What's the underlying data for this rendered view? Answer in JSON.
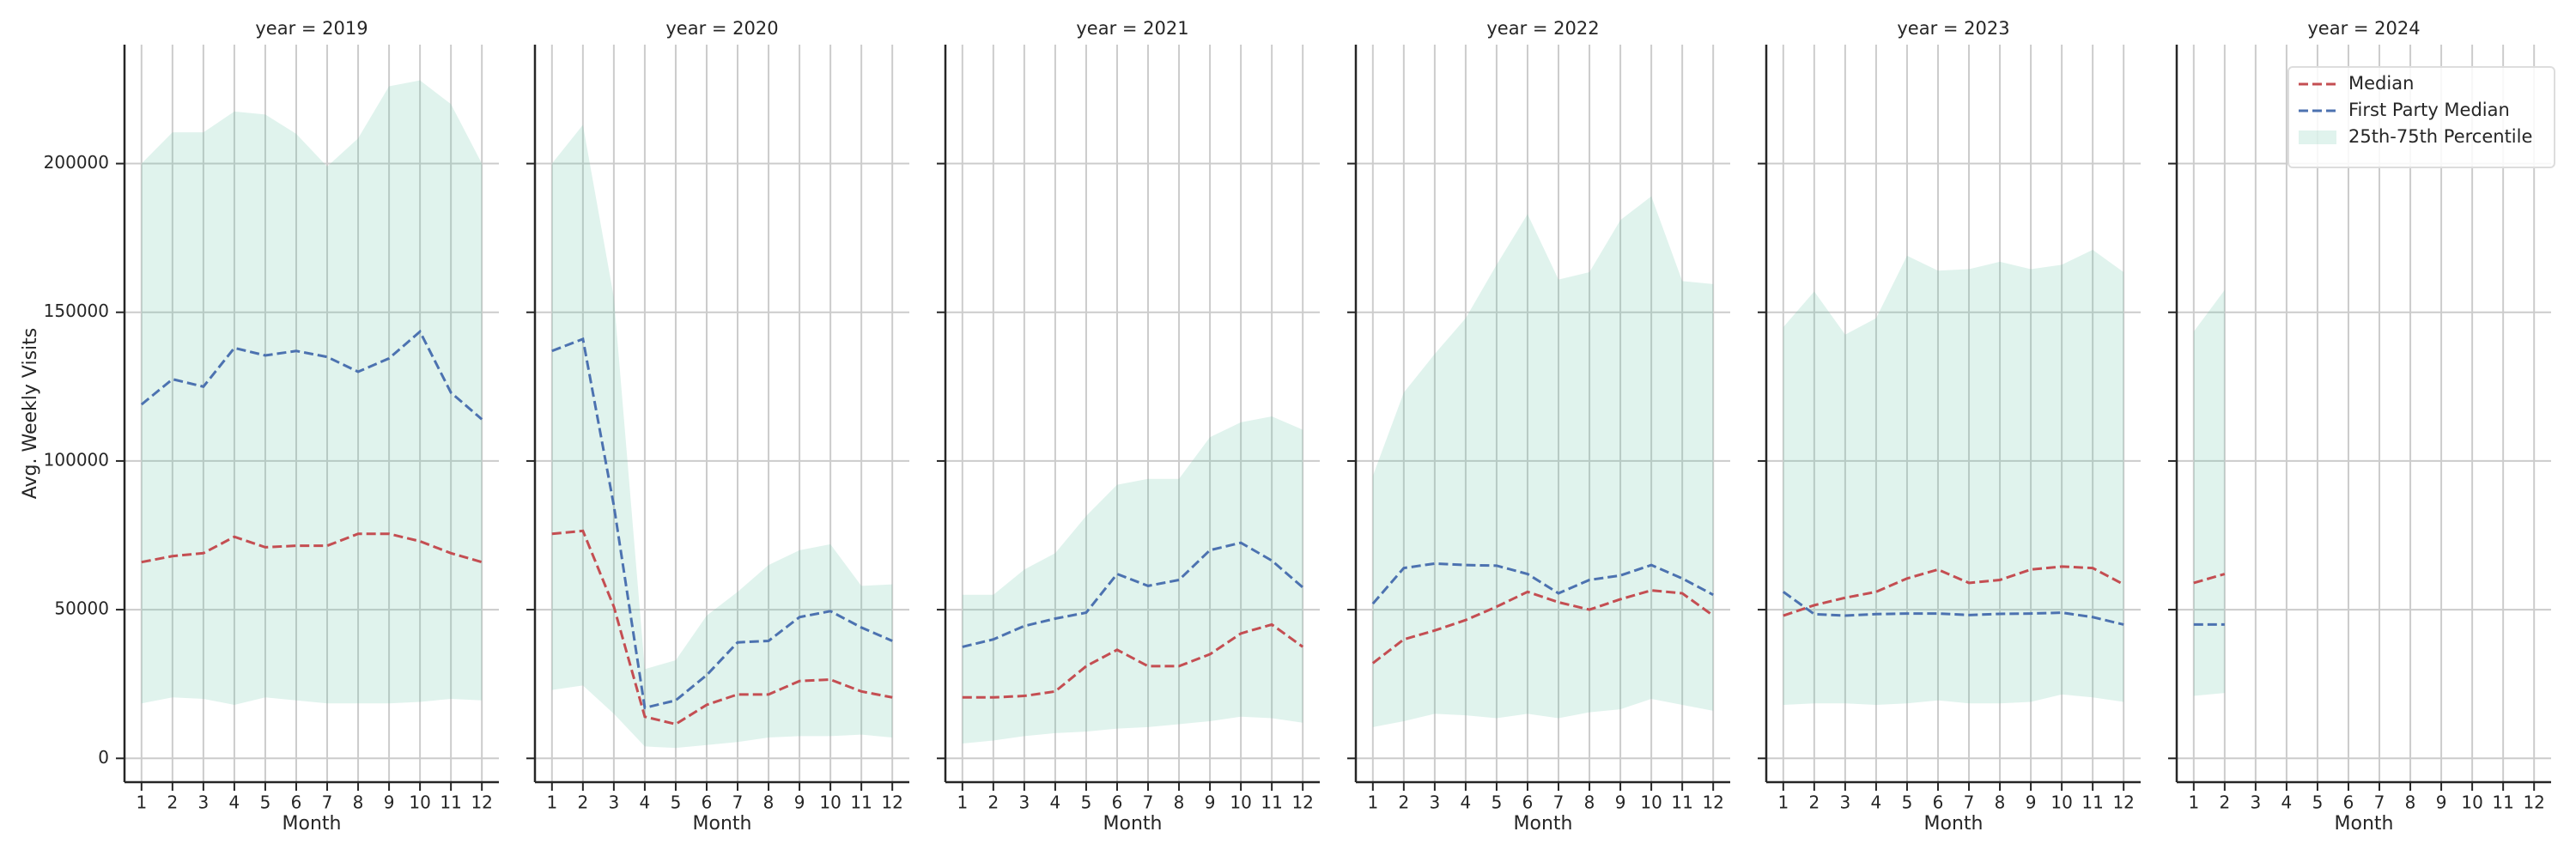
{
  "chart_data": [
    {
      "type": "line",
      "title": "year = 2019",
      "xlabel": "Month",
      "ylabel": "Avg. Weekly Visits",
      "x": [
        1,
        2,
        3,
        4,
        5,
        6,
        7,
        8,
        9,
        10,
        11,
        12
      ],
      "xlim": [
        0.45,
        12.55
      ],
      "xticks": [
        1,
        2,
        3,
        4,
        5,
        6,
        7,
        8,
        9,
        10,
        11,
        12
      ],
      "ylim": [
        -8000,
        240000
      ],
      "yticks": [
        0,
        50000,
        100000,
        150000,
        200000
      ],
      "grid": true,
      "series": [
        {
          "name": "Median",
          "color": "#c44e52",
          "linestyle": "dashed",
          "values": [
            66000,
            68000,
            69000,
            74500,
            71000,
            71500,
            71500,
            75500,
            75500,
            73000,
            69000,
            66000
          ]
        },
        {
          "name": "First Party Median",
          "color": "#4c72b0",
          "linestyle": "dashed",
          "values": [
            119000,
            127500,
            125000,
            138000,
            135500,
            137000,
            135000,
            130000,
            134500,
            143500,
            123000,
            114000
          ]
        }
      ],
      "band": {
        "name": "25th-75th Percentile",
        "color": "#66c2a5",
        "lower": [
          18500,
          20500,
          20000,
          18000,
          20500,
          19500,
          18500,
          18500,
          18500,
          19000,
          20000,
          19500
        ],
        "upper": [
          200000,
          210500,
          210500,
          217500,
          216500,
          210000,
          199000,
          208500,
          226000,
          228000,
          220000,
          200000
        ]
      }
    },
    {
      "type": "line",
      "title": "year = 2020",
      "xlabel": "Month",
      "x": [
        1,
        2,
        3,
        4,
        5,
        6,
        7,
        8,
        9,
        10,
        11,
        12
      ],
      "xlim": [
        0.45,
        12.55
      ],
      "xticks": [
        1,
        2,
        3,
        4,
        5,
        6,
        7,
        8,
        9,
        10,
        11,
        12
      ],
      "ylim": [
        -8000,
        240000
      ],
      "yticks": [
        0,
        50000,
        100000,
        150000,
        200000
      ],
      "grid": true,
      "series": [
        {
          "name": "Median",
          "color": "#c44e52",
          "linestyle": "dashed",
          "values": [
            75500,
            76500,
            51000,
            14000,
            11500,
            18000,
            21500,
            21500,
            26000,
            26500,
            22500,
            20500
          ]
        },
        {
          "name": "First Party Median",
          "color": "#4c72b0",
          "linestyle": "dashed",
          "values": [
            137000,
            141000,
            85000,
            17000,
            19500,
            28000,
            39000,
            39500,
            47500,
            49500,
            44000,
            39500
          ]
        }
      ],
      "band": {
        "name": "25th-75th Percentile",
        "color": "#66c2a5",
        "lower": [
          23000,
          24500,
          15000,
          4000,
          3500,
          4500,
          5500,
          7000,
          7500,
          7500,
          8000,
          7000
        ],
        "upper": [
          200000,
          213000,
          155000,
          30000,
          33000,
          48000,
          56000,
          65000,
          70000,
          72000,
          58000,
          58500
        ]
      }
    },
    {
      "type": "line",
      "title": "year = 2021",
      "xlabel": "Month",
      "x": [
        1,
        2,
        3,
        4,
        5,
        6,
        7,
        8,
        9,
        10,
        11,
        12
      ],
      "xlim": [
        0.45,
        12.55
      ],
      "xticks": [
        1,
        2,
        3,
        4,
        5,
        6,
        7,
        8,
        9,
        10,
        11,
        12
      ],
      "ylim": [
        -8000,
        240000
      ],
      "yticks": [
        0,
        50000,
        100000,
        150000,
        200000
      ],
      "grid": true,
      "series": [
        {
          "name": "Median",
          "color": "#c44e52",
          "linestyle": "dashed",
          "values": [
            20500,
            20500,
            21000,
            22500,
            31000,
            36500,
            31000,
            31000,
            35000,
            42000,
            45000,
            37500
          ]
        },
        {
          "name": "First Party Median",
          "color": "#4c72b0",
          "linestyle": "dashed",
          "values": [
            37500,
            40000,
            44500,
            47000,
            49000,
            62000,
            58000,
            60000,
            70000,
            72500,
            66500,
            57500
          ]
        }
      ],
      "band": {
        "name": "25th-75th Percentile",
        "color": "#66c2a5",
        "lower": [
          5000,
          6000,
          7500,
          8500,
          9000,
          10000,
          10500,
          11500,
          12500,
          14000,
          13500,
          12000
        ],
        "upper": [
          55000,
          55000,
          63500,
          69000,
          81500,
          92000,
          94000,
          94000,
          108000,
          113000,
          115000,
          110500
        ]
      }
    },
    {
      "type": "line",
      "title": "year = 2022",
      "xlabel": "Month",
      "x": [
        1,
        2,
        3,
        4,
        5,
        6,
        7,
        8,
        9,
        10,
        11,
        12
      ],
      "xlim": [
        0.45,
        12.55
      ],
      "xticks": [
        1,
        2,
        3,
        4,
        5,
        6,
        7,
        8,
        9,
        10,
        11,
        12
      ],
      "ylim": [
        -8000,
        240000
      ],
      "yticks": [
        0,
        50000,
        100000,
        150000,
        200000
      ],
      "grid": true,
      "series": [
        {
          "name": "Median",
          "color": "#c44e52",
          "linestyle": "dashed",
          "values": [
            32000,
            40000,
            43000,
            46500,
            51000,
            56000,
            52500,
            50000,
            53500,
            56500,
            55500,
            48000
          ]
        },
        {
          "name": "First Party Median",
          "color": "#4c72b0",
          "linestyle": "dashed",
          "values": [
            52000,
            64000,
            65500,
            65000,
            64800,
            62000,
            55500,
            60000,
            61500,
            65000,
            60500,
            55000
          ]
        }
      ],
      "band": {
        "name": "25th-75th Percentile",
        "color": "#66c2a5",
        "lower": [
          10500,
          12500,
          15000,
          14500,
          13500,
          15000,
          13500,
          15500,
          16500,
          20000,
          18000,
          16000
        ],
        "upper": [
          95000,
          123000,
          136000,
          148000,
          166000,
          183000,
          161000,
          163500,
          181000,
          189000,
          160500,
          159500
        ]
      }
    },
    {
      "type": "line",
      "title": "year = 2023",
      "xlabel": "Month",
      "x": [
        1,
        2,
        3,
        4,
        5,
        6,
        7,
        8,
        9,
        10,
        11,
        12
      ],
      "xlim": [
        0.45,
        12.55
      ],
      "xticks": [
        1,
        2,
        3,
        4,
        5,
        6,
        7,
        8,
        9,
        10,
        11,
        12
      ],
      "ylim": [
        -8000,
        240000
      ],
      "yticks": [
        0,
        50000,
        100000,
        150000,
        200000
      ],
      "grid": true,
      "series": [
        {
          "name": "Median",
          "color": "#c44e52",
          "linestyle": "dashed",
          "values": [
            48000,
            51500,
            54000,
            56000,
            60500,
            63500,
            59000,
            60000,
            63500,
            64500,
            64000,
            58500
          ]
        },
        {
          "name": "First Party Median",
          "color": "#4c72b0",
          "linestyle": "dashed",
          "values": [
            56000,
            48500,
            48000,
            48500,
            48700,
            48700,
            48200,
            48600,
            48700,
            49000,
            47500,
            45000
          ]
        }
      ],
      "band": {
        "name": "25th-75th Percentile",
        "color": "#66c2a5",
        "lower": [
          18000,
          18500,
          18500,
          18000,
          18500,
          19500,
          18500,
          18500,
          19000,
          21500,
          20500,
          19000
        ],
        "upper": [
          145000,
          157000,
          142500,
          148000,
          169000,
          164000,
          164500,
          167000,
          164500,
          166000,
          171000,
          163500
        ]
      }
    },
    {
      "type": "line",
      "title": "year = 2024",
      "xlabel": "Month",
      "legend": "upper right",
      "x": [
        1,
        2,
        3,
        4,
        5,
        6,
        7,
        8,
        9,
        10,
        11,
        12
      ],
      "xlim": [
        0.45,
        12.55
      ],
      "xticks": [
        1,
        2,
        3,
        4,
        5,
        6,
        7,
        8,
        9,
        10,
        11,
        12
      ],
      "ylim": [
        -8000,
        240000
      ],
      "yticks": [
        0,
        50000,
        100000,
        150000,
        200000
      ],
      "grid": true,
      "series": [
        {
          "name": "Median",
          "color": "#c44e52",
          "linestyle": "dashed",
          "values": [
            59000,
            62000,
            null,
            null,
            null,
            null,
            null,
            null,
            null,
            null,
            null,
            null
          ]
        },
        {
          "name": "First Party Median",
          "color": "#4c72b0",
          "linestyle": "dashed",
          "values": [
            45000,
            45000,
            null,
            null,
            null,
            null,
            null,
            null,
            null,
            null,
            null,
            null
          ]
        }
      ],
      "band": {
        "name": "25th-75th Percentile",
        "color": "#66c2a5",
        "lower": [
          21000,
          22000,
          null,
          null,
          null,
          null,
          null,
          null,
          null,
          null,
          null,
          null
        ],
        "upper": [
          143500,
          157500,
          null,
          null,
          null,
          null,
          null,
          null,
          null,
          null,
          null,
          null
        ]
      }
    }
  ]
}
